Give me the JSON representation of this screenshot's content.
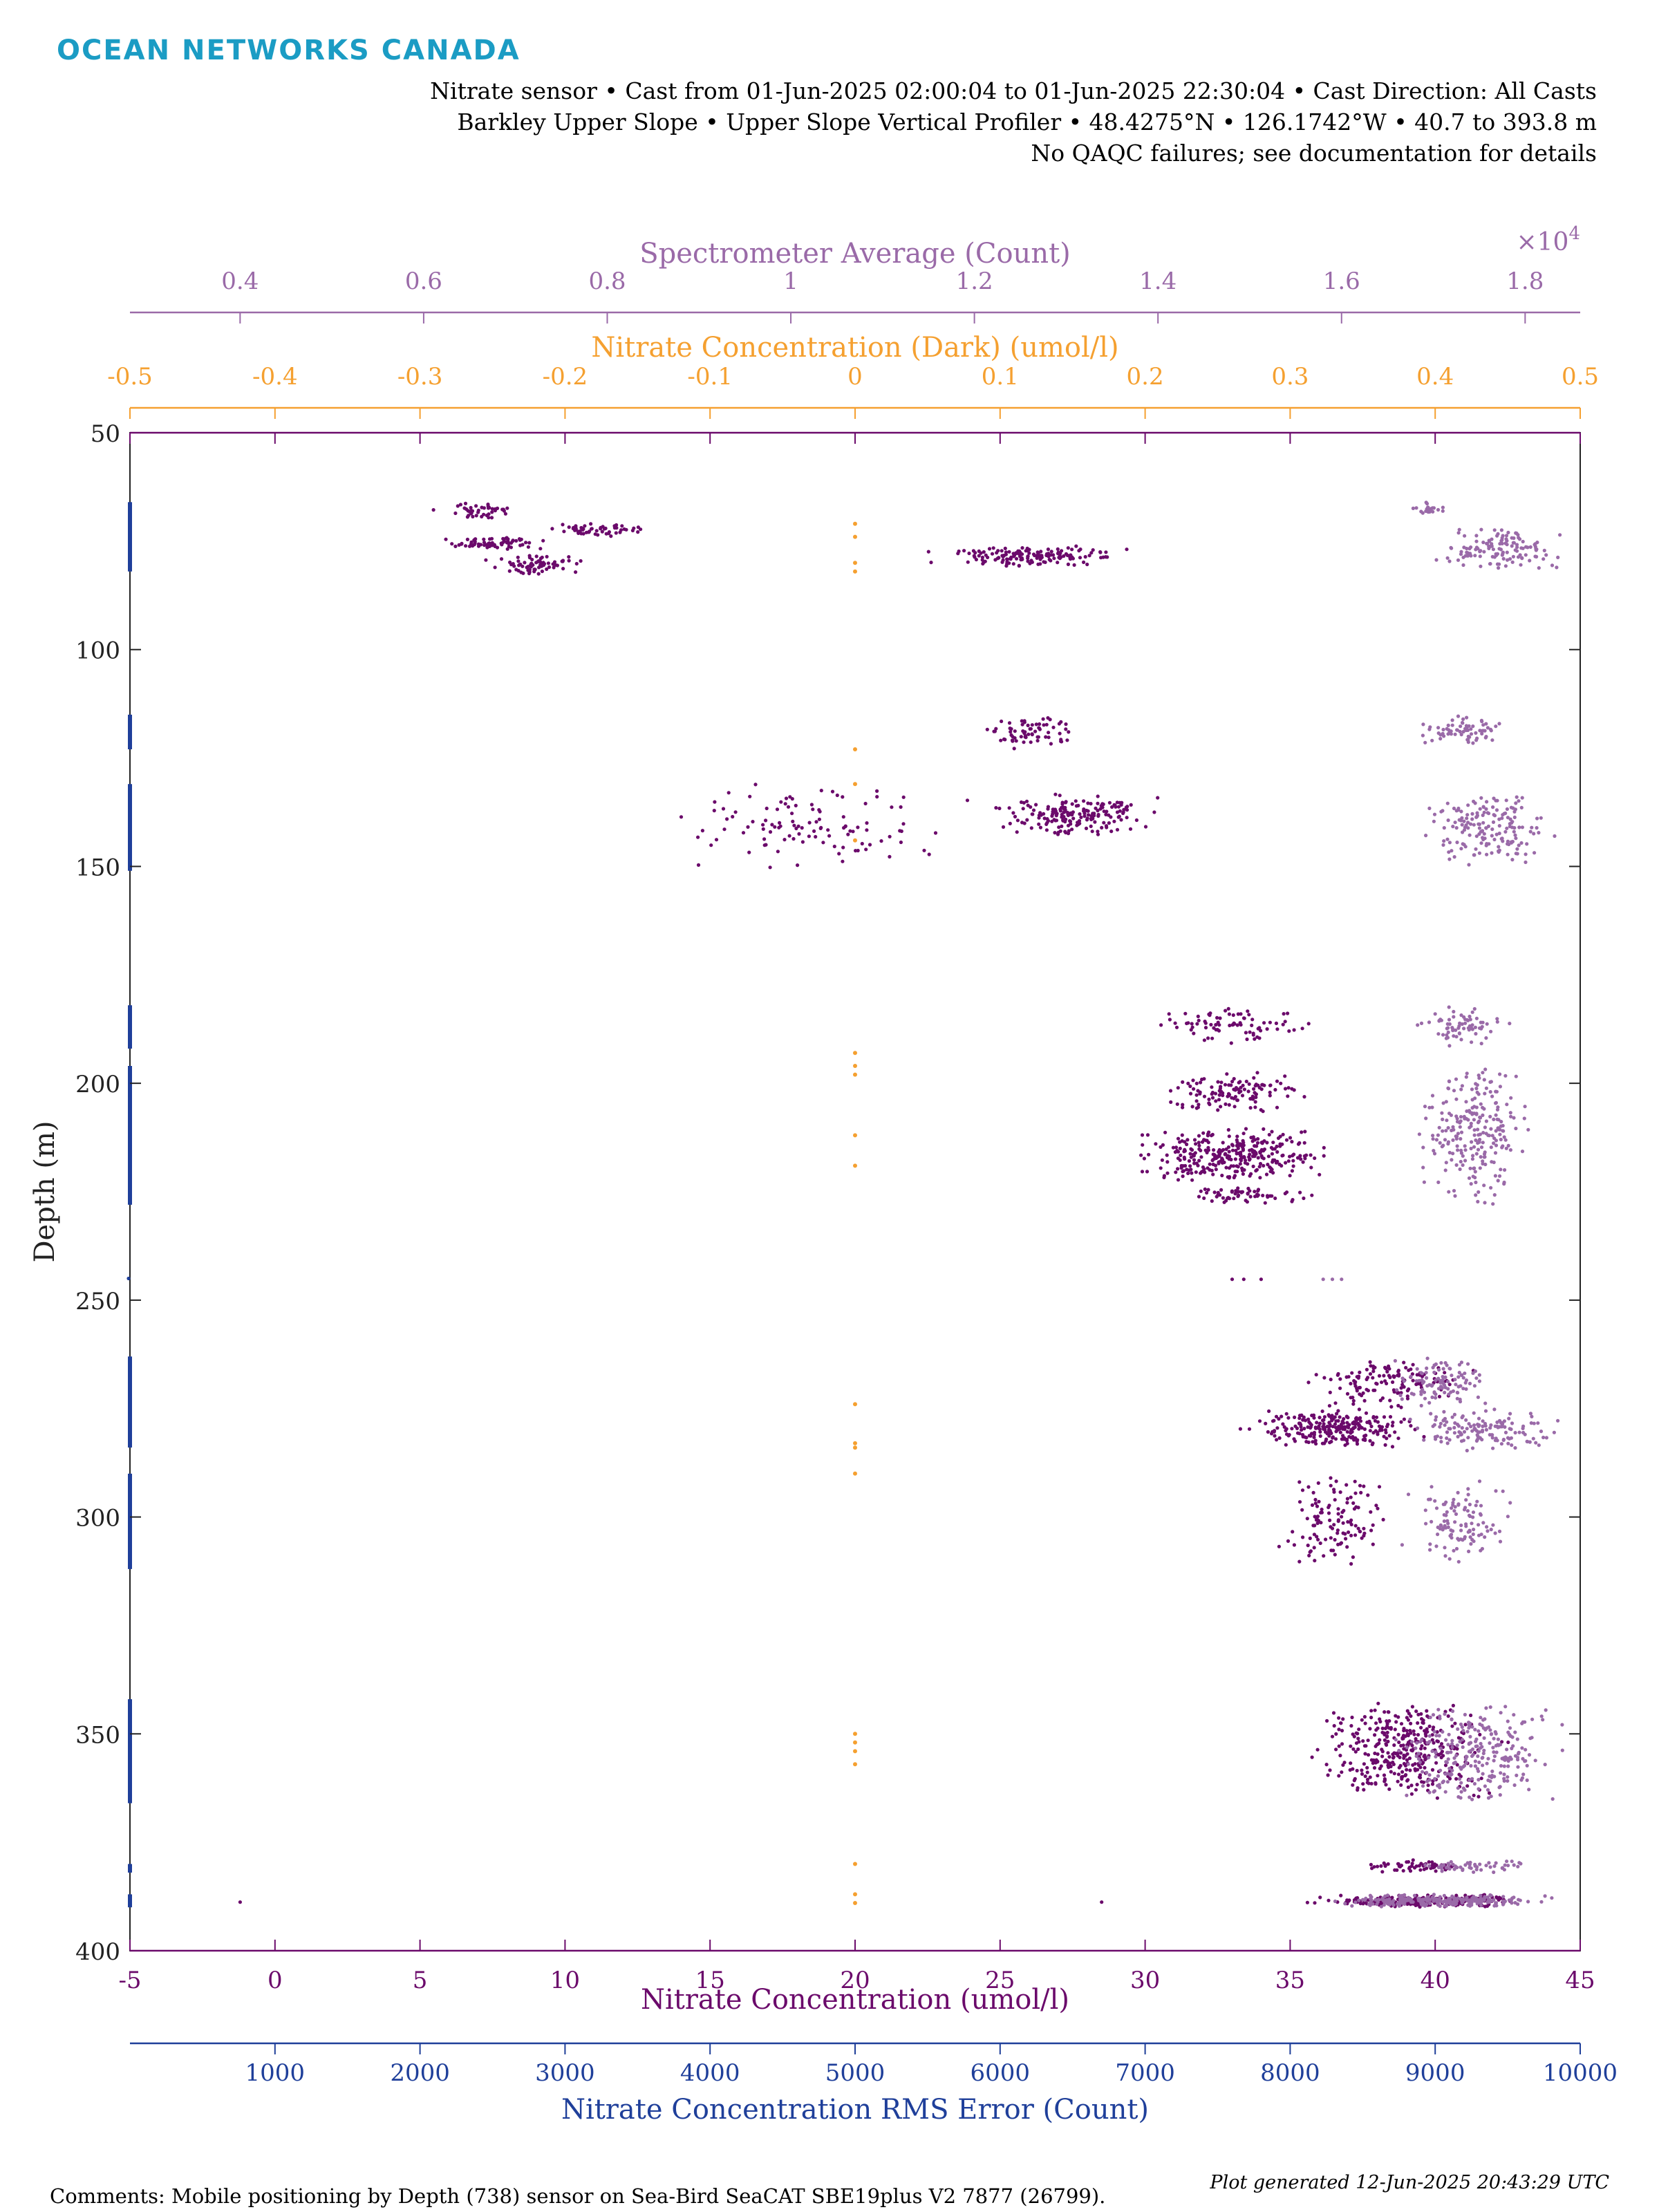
{
  "logo": "OCEAN NETWORKS CANADA",
  "header": {
    "line1": "Nitrate sensor • Cast from 01-Jun-2025 02:00:04 to 01-Jun-2025 22:30:04 • Cast Direction: All Casts",
    "line2": "Barkley Upper Slope • Upper Slope Vertical Profiler • 48.4275°N • 126.1742°W • 40.7 to 393.8 m",
    "line3": "No QAQC failures; see documentation for details"
  },
  "footer": {
    "comments": "Comments: Mobile positioning by Depth (738) sensor on Sea-Bird SeaCAT SBE19plus V2 7877 (26799).",
    "generated": "Plot generated 12-Jun-2025 20:43:29 UTC"
  },
  "colors": {
    "nitrate": "#6b0a6b",
    "spectrometer": "#9a6aa8",
    "dark": "#f5a030",
    "rms": "#1f3f9a"
  },
  "chart_data": {
    "type": "scatter",
    "ylabel": "Depth (m)",
    "yaxis": {
      "range": [
        50,
        400
      ],
      "reversed": true,
      "ticks": [
        "50",
        "100",
        "150",
        "200",
        "250",
        "300",
        "350",
        "400"
      ]
    },
    "axes": {
      "nitrate": {
        "label": "Nitrate Concentration (umol/l)",
        "range": [
          -5,
          45
        ],
        "ticks": [
          "-5",
          "0",
          "5",
          "10",
          "15",
          "20",
          "25",
          "30",
          "35",
          "40",
          "45"
        ]
      },
      "rms": {
        "label": "Nitrate Concentration RMS Error (Count)",
        "range": [
          0,
          10000
        ],
        "ticks": [
          "1000",
          "2000",
          "3000",
          "4000",
          "5000",
          "6000",
          "7000",
          "8000",
          "9000",
          "10000"
        ]
      },
      "dark": {
        "label": "Nitrate Concentration (Dark) (umol/l)",
        "range": [
          -0.5,
          0.5
        ],
        "ticks": [
          "-0.5",
          "-0.4",
          "-0.3",
          "-0.2",
          "-0.1",
          "0",
          "0.1",
          "0.2",
          "0.3",
          "0.4",
          "0.5"
        ]
      },
      "spectrometer": {
        "label": "Spectrometer Average (Count)",
        "range": [
          0.28,
          1.86
        ],
        "ticks": [
          "0.4",
          "0.6",
          "0.8",
          "1",
          "1.2",
          "1.4",
          "1.6",
          "1.8"
        ],
        "multiplier": "×10",
        "exponent": "4"
      }
    },
    "series": [
      {
        "name": "Nitrate Concentration (umol/l)",
        "axis": "nitrate",
        "clusters": [
          {
            "x": [
              5,
              9
            ],
            "y": [
              66,
              70
            ],
            "n": 45
          },
          {
            "x": [
              5,
              10
            ],
            "y": [
              74,
              77
            ],
            "n": 70
          },
          {
            "x": [
              9,
              13
            ],
            "y": [
              71,
              74
            ],
            "n": 55
          },
          {
            "x": [
              7,
              11
            ],
            "y": [
              78,
              83
            ],
            "n": 70
          },
          {
            "x": [
              22,
              30
            ],
            "y": [
              76,
              81
            ],
            "n": 160
          },
          {
            "x": [
              24,
              28
            ],
            "y": [
              115,
              123
            ],
            "n": 70
          },
          {
            "x": [
              24,
              31
            ],
            "y": [
              133,
              143
            ],
            "n": 190
          },
          {
            "x": [
              12,
              25
            ],
            "y": [
              130,
              151
            ],
            "n": 110
          },
          {
            "x": [
              30,
              36
            ],
            "y": [
              182,
              191
            ],
            "n": 80
          },
          {
            "x": [
              30,
              36
            ],
            "y": [
              197,
              208
            ],
            "n": 120
          },
          {
            "x": [
              29,
              37
            ],
            "y": [
              210,
              223
            ],
            "n": 320
          },
          {
            "x": [
              31,
              36
            ],
            "y": [
              224,
              228
            ],
            "n": 60
          },
          {
            "x": [
              35,
              42
            ],
            "y": [
              263,
              275
            ],
            "n": 130
          },
          {
            "x": [
              33,
              40
            ],
            "y": [
              275,
              284
            ],
            "n": 260
          },
          {
            "x": [
              34,
              39
            ],
            "y": [
              290,
              312
            ],
            "n": 120
          },
          {
            "x": [
              35,
              43
            ],
            "y": [
              342,
              366
            ],
            "n": 380
          },
          {
            "x": [
              37,
              42
            ],
            "y": [
              379,
              382
            ],
            "n": 60
          },
          {
            "x": [
              35,
              44
            ],
            "y": [
              387,
              390
            ],
            "n": 220
          }
        ],
        "outliers": [
          [
            -1.2,
            388.8
          ],
          [
            33.4,
            245.2
          ],
          [
            34.0,
            245.2
          ],
          [
            33.0,
            245.2
          ],
          [
            28.5,
            388.8
          ]
        ]
      },
      {
        "name": "Spectrometer Average (Count)",
        "axis": "spectrometer",
        "clusters": [
          {
            "x": [
              1.67,
              1.72
            ],
            "y": [
              66,
              69
            ],
            "n": 25
          },
          {
            "x": [
              1.68,
              1.86
            ],
            "y": [
              72,
              82
            ],
            "n": 130
          },
          {
            "x": [
              1.67,
              1.79
            ],
            "y": [
              115,
              123
            ],
            "n": 70
          },
          {
            "x": [
              1.67,
              1.85
            ],
            "y": [
              133,
              150
            ],
            "n": 170
          },
          {
            "x": [
              1.67,
              1.79
            ],
            "y": [
              182,
              192
            ],
            "n": 70
          },
          {
            "x": [
              1.67,
              1.82
            ],
            "y": [
              196,
              228
            ],
            "n": 240
          },
          {
            "x": [
              1.64,
              1.78
            ],
            "y": [
              263,
              275
            ],
            "n": 100
          },
          {
            "x": [
              1.66,
              1.86
            ],
            "y": [
              275,
              285
            ],
            "n": 140
          },
          {
            "x": [
              1.66,
              1.8
            ],
            "y": [
              291,
              312
            ],
            "n": 110
          },
          {
            "x": [
              1.64,
              1.86
            ],
            "y": [
              342,
              366
            ],
            "n": 260
          },
          {
            "x": [
              1.64,
              1.84
            ],
            "y": [
              379,
              382
            ],
            "n": 50
          },
          {
            "x": [
              1.56,
              1.86
            ],
            "y": [
              387,
              390
            ],
            "n": 220
          }
        ],
        "outliers": [
          [
            1.58,
            245.2
          ],
          [
            1.59,
            245.2
          ],
          [
            1.6,
            245.2
          ]
        ]
      },
      {
        "name": "Nitrate Concentration (Dark) (umol/l)",
        "axis": "dark",
        "points": [
          [
            0,
            71
          ],
          [
            0,
            74
          ],
          [
            0,
            80
          ],
          [
            0,
            82
          ],
          [
            0,
            123
          ],
          [
            0,
            131
          ],
          [
            0,
            144
          ],
          [
            0,
            193
          ],
          [
            0,
            196
          ],
          [
            0,
            198
          ],
          [
            0,
            212
          ],
          [
            0,
            219
          ],
          [
            0,
            274
          ],
          [
            0,
            283
          ],
          [
            0,
            284
          ],
          [
            0,
            290
          ],
          [
            0,
            350
          ],
          [
            0,
            352
          ],
          [
            0,
            354
          ],
          [
            0,
            357
          ],
          [
            0,
            380
          ],
          [
            0,
            387
          ],
          [
            0,
            389
          ]
        ]
      },
      {
        "name": "Nitrate Concentration RMS Error (Count)",
        "axis": "rms",
        "segments": [
          [
            66,
            82
          ],
          [
            115,
            123
          ],
          [
            131,
            151
          ],
          [
            182,
            192
          ],
          [
            196,
            228
          ],
          [
            263,
            284
          ],
          [
            290,
            312
          ],
          [
            342,
            366
          ],
          [
            380,
            382
          ],
          [
            387,
            390
          ]
        ],
        "points": [
          [
            0,
            245
          ]
        ]
      }
    ]
  }
}
